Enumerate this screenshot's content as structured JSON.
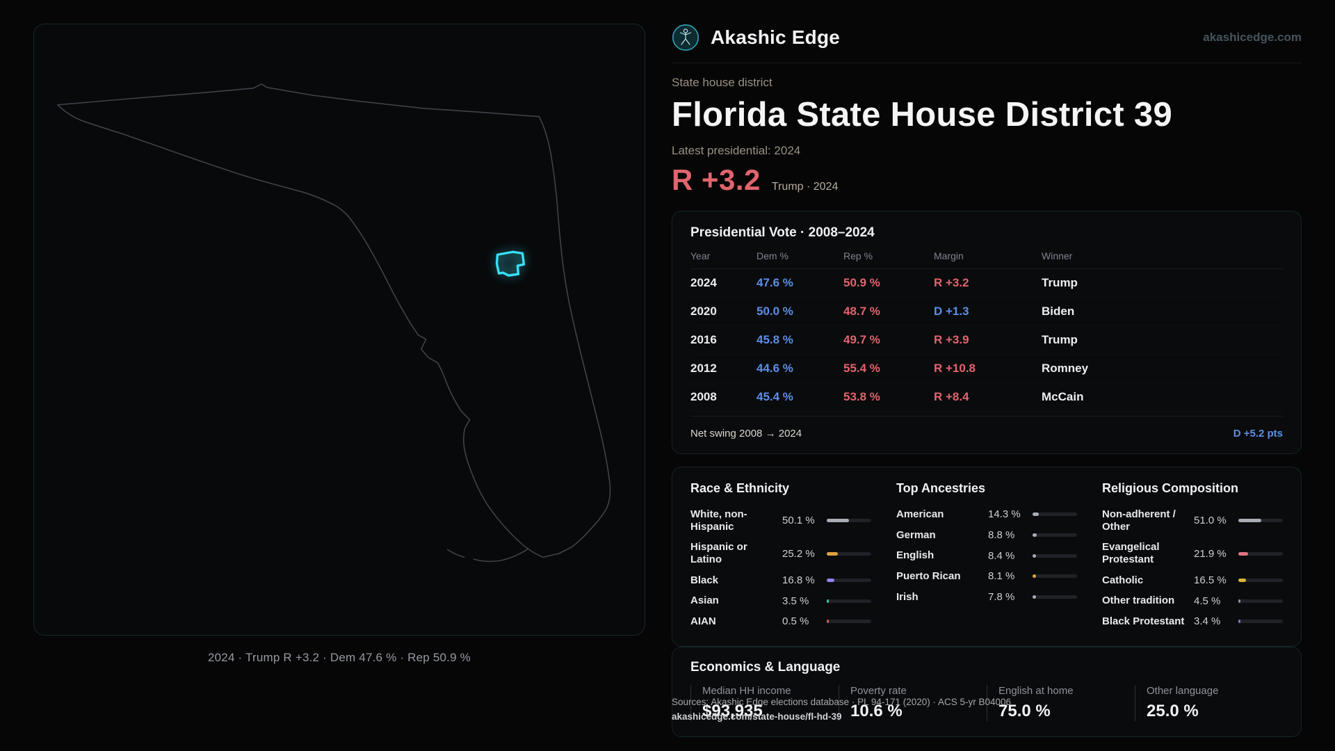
{
  "theme": {
    "background": "#060607",
    "accent_cyan": "#38e0f5",
    "dem_color": "#5c8fe6",
    "rep_color": "#e2646d"
  },
  "brand": {
    "name": "Akashic Edge",
    "site_url": "akashicedge.com"
  },
  "header": {
    "kicker": "State house district",
    "title": "Florida State House District 39",
    "latest_label": "Latest presidential: 2024",
    "headline_margin": "R +3.2",
    "headline_detail": "Trump · 2024"
  },
  "map": {
    "caption": "2024 · Trump R +3.2 · Dem 47.6 % · Rep 50.9 %"
  },
  "presidential": {
    "title": "Presidential Vote · 2008–2024",
    "columns": {
      "year": "Year",
      "dem": "Dem %",
      "rep": "Rep %",
      "margin": "Margin",
      "winner": "Winner"
    },
    "rows": [
      {
        "year": "2024",
        "dem": "47.6 %",
        "rep": "50.9 %",
        "margin": "R +3.2",
        "winner": "Trump"
      },
      {
        "year": "2020",
        "dem": "50.0 %",
        "rep": "48.7 %",
        "margin": "D +1.3",
        "winner": "Biden"
      },
      {
        "year": "2016",
        "dem": "45.8 %",
        "rep": "49.7 %",
        "margin": "R +3.9",
        "winner": "Trump"
      },
      {
        "year": "2012",
        "dem": "44.6 %",
        "rep": "55.4 %",
        "margin": "R +10.8",
        "winner": "Romney"
      },
      {
        "year": "2008",
        "dem": "45.4 %",
        "rep": "53.8 %",
        "margin": "R +8.4",
        "winner": "McCain"
      }
    ],
    "net_swing_label": "Net swing 2008 → 2024",
    "net_swing_value": "D +5.2 pts"
  },
  "race": {
    "title": "Race & Ethnicity",
    "items": [
      {
        "label": "White, non-Hispanic",
        "value": "50.1 %",
        "pct": 50.1,
        "color": "#a8adb5"
      },
      {
        "label": "Hispanic or Latino",
        "value": "25.2 %",
        "pct": 25.2,
        "color": "#dfa23f"
      },
      {
        "label": "Black",
        "value": "16.8 %",
        "pct": 16.8,
        "color": "#8d82ee"
      },
      {
        "label": "Asian",
        "value": "3.5 %",
        "pct": 3.5,
        "color": "#33c39b"
      },
      {
        "label": "AIAN",
        "value": "0.5 %",
        "pct": 0.5,
        "color": "#cf5a4d"
      }
    ]
  },
  "ancestries": {
    "title": "Top Ancestries",
    "items": [
      {
        "label": "American",
        "value": "14.3 %",
        "pct": 14.3,
        "color": "#a8adb5"
      },
      {
        "label": "German",
        "value": "8.8 %",
        "pct": 8.8,
        "color": "#a8adb5"
      },
      {
        "label": "English",
        "value": "8.4 %",
        "pct": 8.4,
        "color": "#a8adb5"
      },
      {
        "label": "Puerto Rican",
        "value": "8.1 %",
        "pct": 8.1,
        "color": "#dfa23f"
      },
      {
        "label": "Irish",
        "value": "7.8 %",
        "pct": 7.8,
        "color": "#a8adb5"
      }
    ]
  },
  "religion": {
    "title": "Religious Composition",
    "items": [
      {
        "label": "Non-adherent / Other",
        "value": "51.0 %",
        "pct": 51.0,
        "color": "#a8adb5"
      },
      {
        "label": "Evangelical Protestant",
        "value": "21.9 %",
        "pct": 21.9,
        "color": "#e2737e"
      },
      {
        "label": "Catholic",
        "value": "16.5 %",
        "pct": 16.5,
        "color": "#dcb43a"
      },
      {
        "label": "Other tradition",
        "value": "4.5 %",
        "pct": 4.5,
        "color": "#8a9096"
      },
      {
        "label": "Black Protestant",
        "value": "3.4 %",
        "pct": 3.4,
        "color": "#7a72d8"
      }
    ]
  },
  "economics": {
    "title": "Economics & Language",
    "stats": [
      {
        "label": "Median HH income",
        "value": "$93,935"
      },
      {
        "label": "Poverty rate",
        "value": "10.6 %"
      },
      {
        "label": "English at home",
        "value": "75.0 %"
      },
      {
        "label": "Other language",
        "value": "25.0 %"
      }
    ]
  },
  "footer": {
    "sources": "Sources: Akashic Edge elections database · PL 94-171 (2020) · ACS 5-yr B04006",
    "permalink": "akashicedge.com/state-house/fl-hd-39"
  }
}
